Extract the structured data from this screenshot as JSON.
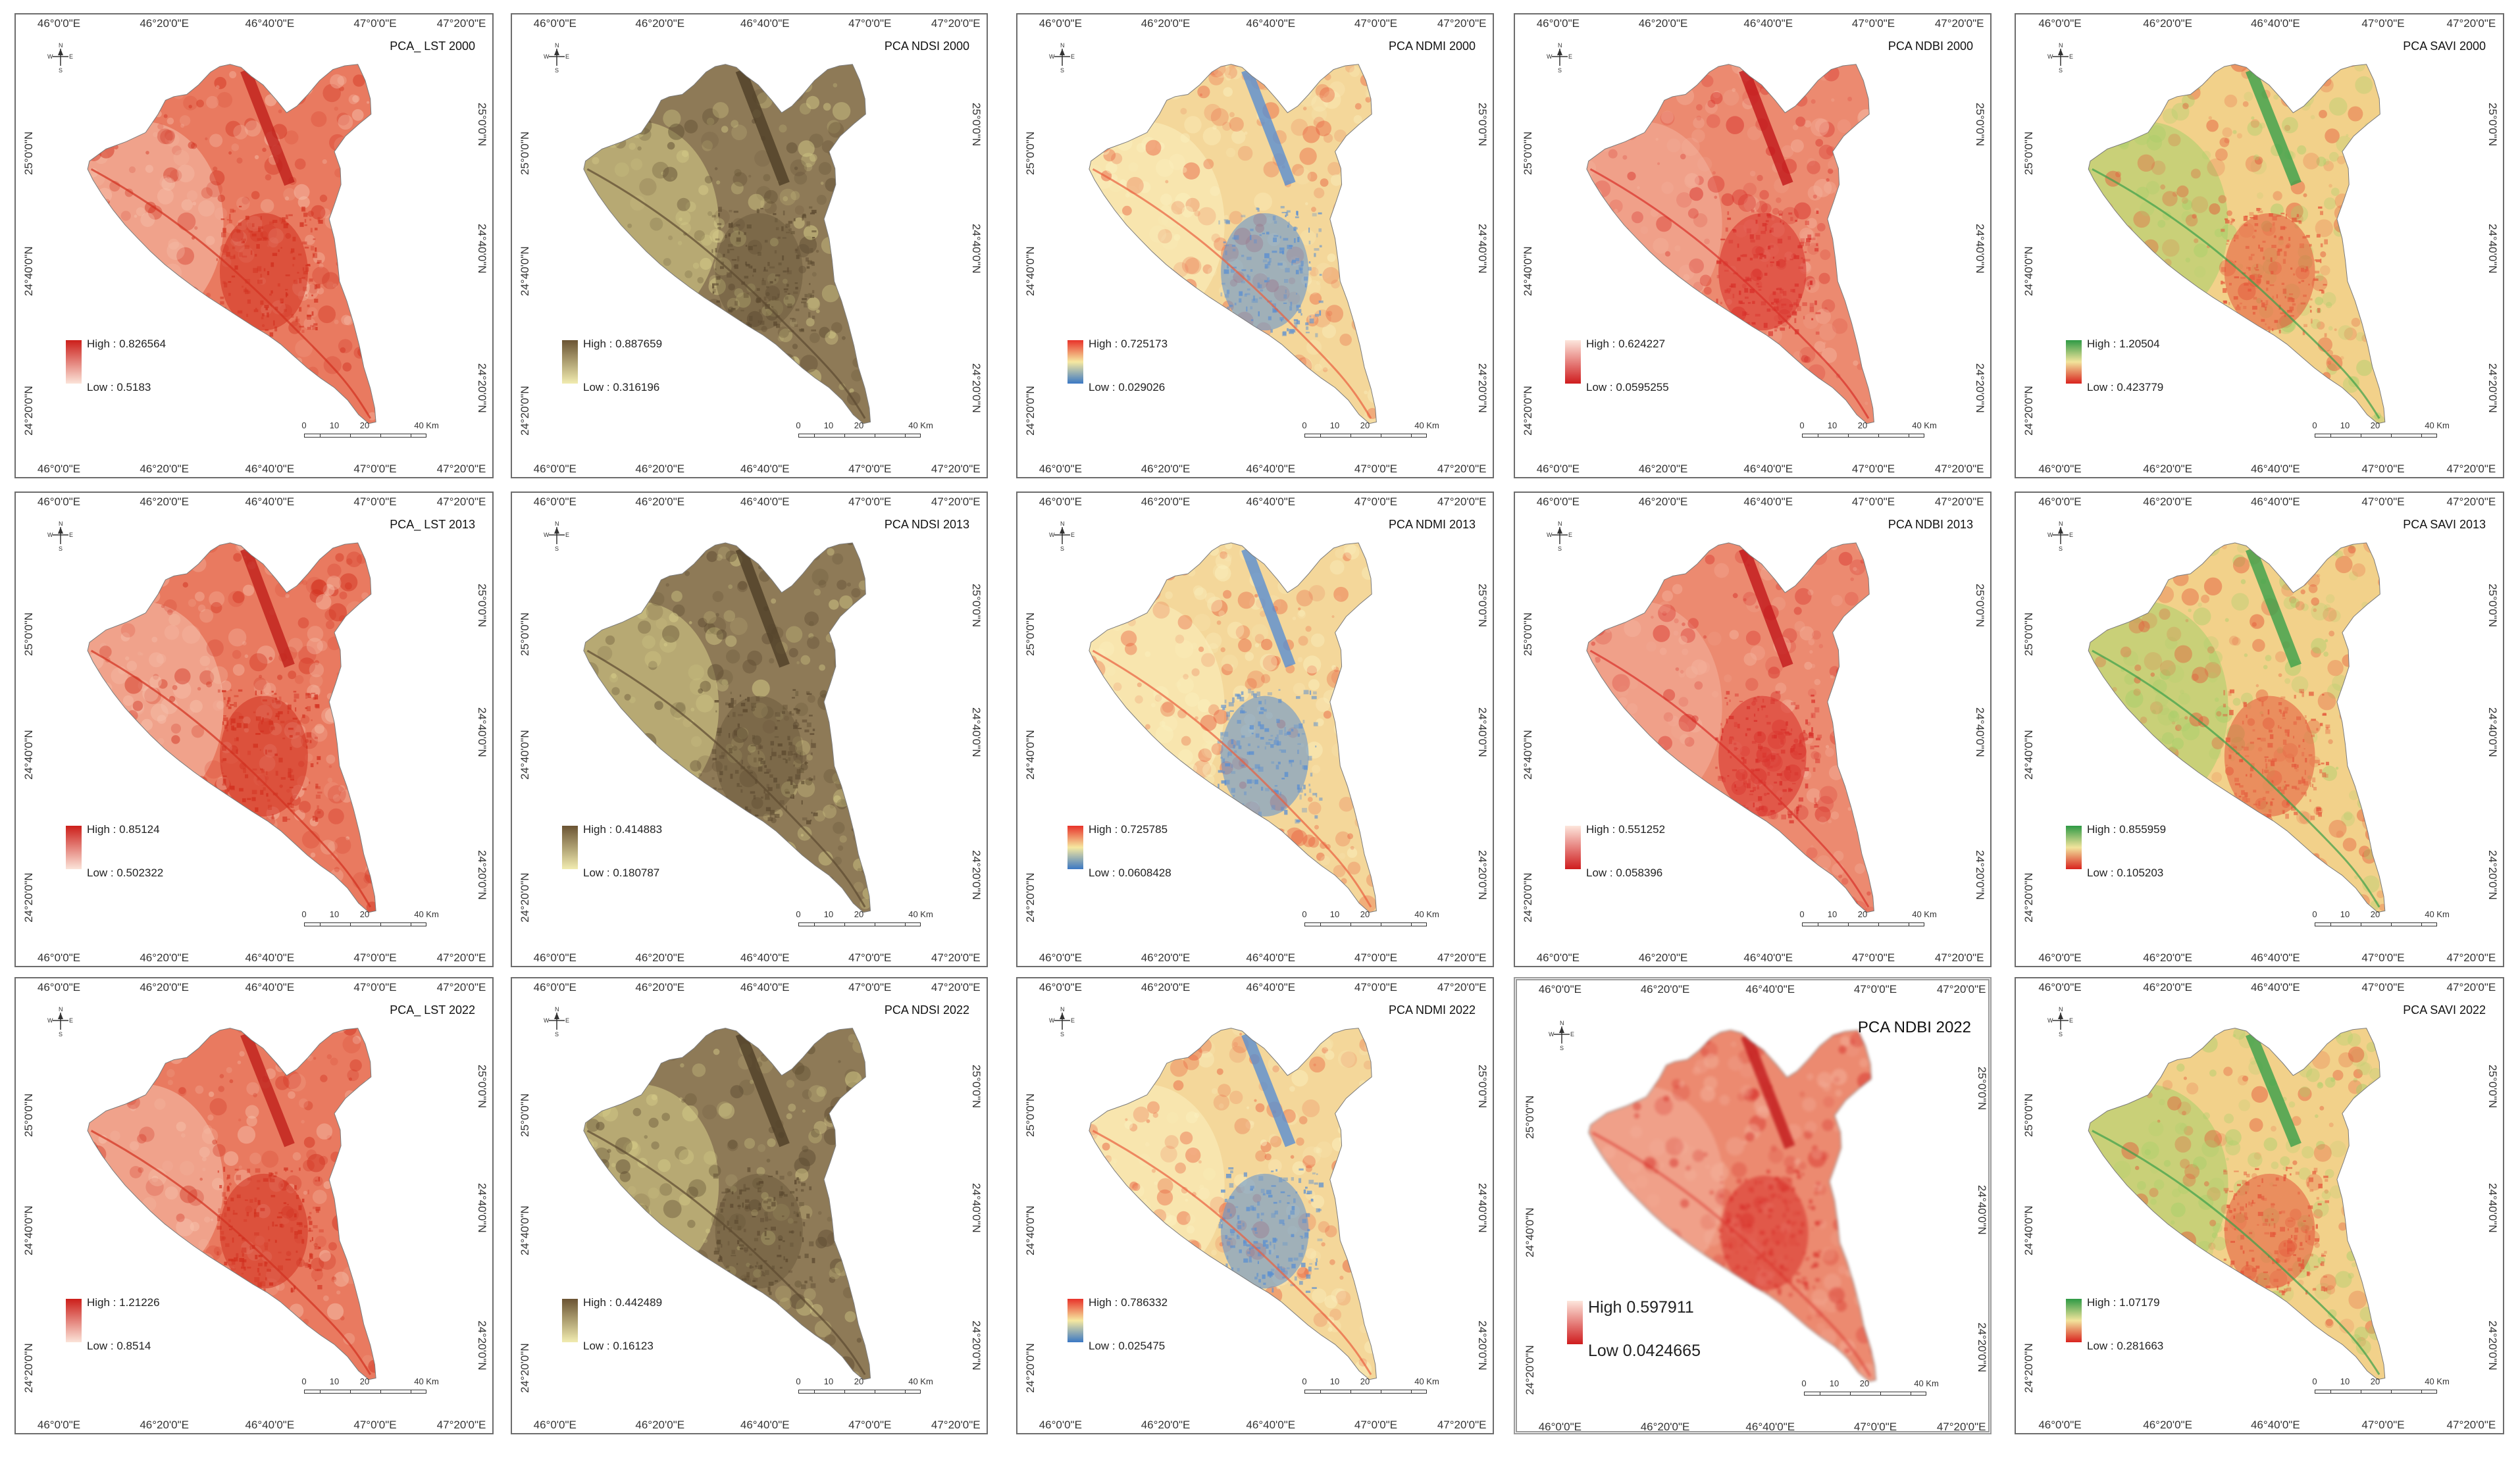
{
  "figure": {
    "scale": {
      "ticks": [
        "0",
        "10",
        "20",
        "40 Km"
      ]
    },
    "compass": {
      "n": "N",
      "s": "S",
      "e": "E",
      "w": "W"
    },
    "panels": [
      {
        "id": "lst-2000",
        "title": "PCA_ LST 2000",
        "theme": "lst",
        "high": "High : 0.826564",
        "low": "Low : 0.5183",
        "lon_top": [
          "46°0'0\"E",
          "46°20'0\"E",
          "46°40'0\"E",
          "47°0'0\"E",
          "47°20'0\"E"
        ],
        "lon_bottom": [
          "46°0'0\"E",
          "46°20'0\"E",
          "46°40'0\"E",
          "47°0'0\"E",
          "47°20'0\"E"
        ],
        "lat": [
          "25°0'0\"N",
          "24°40'0\"N",
          "24°20'0\"N"
        ]
      },
      {
        "id": "ndsi-2000",
        "title": "PCA NDSI 2000",
        "theme": "ndsi",
        "high": "High : 0.887659",
        "low": "Low : 0.316196",
        "lon_top": [
          "46°0'0\"E",
          "46°20'0\"E",
          "46°40'0\"E",
          "47°0'0\"E",
          "47°20'0\"E"
        ],
        "lon_bottom": [
          "46°0'0\"E",
          "46°20'0\"E",
          "46°40'0\"E",
          "47°0'0\"E",
          "47°20'0\"E"
        ],
        "lat": [
          "25°0'0\"N",
          "24°40'0\"N",
          "24°20'0\"N"
        ]
      },
      {
        "id": "ndmi-2000",
        "title": "PCA NDMI 2000",
        "theme": "ndmi",
        "high": "High : 0.725173",
        "low": "Low : 0.029026",
        "lon_top": [
          "46°0'0\"E",
          "46°20'0\"E",
          "46°40'0\"E",
          "47°0'0\"E",
          "47°20'0\"E"
        ],
        "lon_bottom": [
          "46°0'0\"E",
          "46°20'0\"E",
          "46°40'0\"E",
          "47°0'0\"E",
          "47°20'0\"E"
        ],
        "lat": [
          "25°0'0\"N",
          "24°40'0\"N",
          "24°20'0\"N"
        ]
      },
      {
        "id": "ndbi-2000",
        "title": "PCA NDBI 2000",
        "theme": "ndbi",
        "high": "High : 0.624227",
        "low": "Low : 0.0595255",
        "lon_top": [
          "46°0'0\"E",
          "46°20'0\"E",
          "46°40'0\"E",
          "47°0'0\"E",
          "47°20'0\"E"
        ],
        "lon_bottom": [
          "46°0'0\"E",
          "46°20'0\"E",
          "46°40'0\"E",
          "47°0'0\"E",
          "47°20'0\"E"
        ],
        "lat": [
          "25°0'0\"N",
          "24°40'0\"N",
          "24°20'0\"N"
        ]
      },
      {
        "id": "savi-2000",
        "title": "PCA SAVI 2000",
        "theme": "savi",
        "high": "High : 1.20504",
        "low": "Low : 0.423779",
        "lon_top": [
          "46°0'0\"E",
          "46°20'0\"E",
          "46°40'0\"E",
          "47°0'0\"E",
          "47°20'0\"E"
        ],
        "lon_bottom": [
          "46°0'0\"E",
          "46°20'0\"E",
          "46°40'0\"E",
          "47°0'0\"E",
          "47°20'0\"E"
        ],
        "lat": [
          "25°0'0\"N",
          "24°40'0\"N",
          "24°20'0\"N"
        ]
      },
      {
        "id": "lst-2013",
        "title": "PCA_ LST 2013",
        "theme": "lst",
        "high": "High : 0.85124",
        "low": "Low : 0.502322",
        "lon_top": [
          "46°0'0\"E",
          "46°20'0\"E",
          "46°40'0\"E",
          "47°0'0\"E",
          "47°20'0\"E"
        ],
        "lon_bottom": [
          "46°0'0\"E",
          "46°20'0\"E",
          "46°40'0\"E",
          "47°0'0\"E",
          "47°20'0\"E"
        ],
        "lat": [
          "25°0'0\"N",
          "24°40'0\"N",
          "24°20'0\"N"
        ]
      },
      {
        "id": "ndsi-2013",
        "title": "PCA NDSI 2013",
        "theme": "ndsi",
        "high": "High : 0.414883",
        "low": "Low : 0.180787",
        "lon_top": [
          "46°0'0\"E",
          "46°20'0\"E",
          "46°40'0\"E",
          "47°0'0\"E",
          "47°20'0\"E"
        ],
        "lon_bottom": [
          "46°0'0\"E",
          "46°20'0\"E",
          "46°40'0\"E",
          "47°0'0\"E",
          "47°20'0\"E"
        ],
        "lat": [
          "25°0'0\"N",
          "24°40'0\"N",
          "24°20'0\"N"
        ]
      },
      {
        "id": "ndmi-2013",
        "title": "PCA NDMI 2013",
        "theme": "ndmi",
        "high": "High : 0.725785",
        "low": "Low : 0.0608428",
        "lon_top": [
          "46°0'0\"E",
          "46°20'0\"E",
          "46°40'0\"E",
          "47°0'0\"E",
          "47°20'0\"E"
        ],
        "lon_bottom": [
          "46°0'0\"E",
          "46°20'0\"E",
          "46°40'0\"E",
          "47°0'0\"E",
          "47°20'0\"E"
        ],
        "lat": [
          "25°0'0\"N",
          "24°40'0\"N",
          "24°20'0\"N"
        ]
      },
      {
        "id": "ndbi-2013",
        "title": "PCA NDBI 2013",
        "theme": "ndbi",
        "high": "High : 0.551252",
        "low": "Low : 0.058396",
        "lon_top": [
          "46°0'0\"E",
          "46°20'0\"E",
          "46°40'0\"E",
          "47°0'0\"E",
          "47°20'0\"E"
        ],
        "lon_bottom": [
          "46°0'0\"E",
          "46°20'0\"E",
          "46°40'0\"E",
          "47°0'0\"E",
          "47°20'0\"E"
        ],
        "lat": [
          "25°0'0\"N",
          "24°40'0\"N",
          "24°20'0\"N"
        ]
      },
      {
        "id": "savi-2013",
        "title": "PCA SAVI 2013",
        "theme": "savi",
        "high": "High : 0.855959",
        "low": "Low : 0.105203",
        "lon_top": [
          "46°0'0\"E",
          "46°20'0\"E",
          "46°40'0\"E",
          "47°0'0\"E",
          "47°20'0\"E"
        ],
        "lon_bottom": [
          "46°0'0\"E",
          "46°20'0\"E",
          "46°40'0\"E",
          "47°0'0\"E",
          "47°20'0\"E"
        ],
        "lat": [
          "25°0'0\"N",
          "24°40'0\"N",
          "24°20'0\"N"
        ]
      },
      {
        "id": "lst-2022",
        "title": "PCA_ LST 2022",
        "theme": "lst",
        "high": "High : 1.21226",
        "low": "Low : 0.8514",
        "lon_top": [
          "46°0'0\"E",
          "46°20'0\"E",
          "46°40'0\"E",
          "47°0'0\"E",
          "47°20'0\"E"
        ],
        "lon_bottom": [
          "46°0'0\"E",
          "46°20'0\"E",
          "46°40'0\"E",
          "47°0'0\"E",
          "47°20'0\"E"
        ],
        "lat": [
          "25°0'0\"N",
          "24°40'0\"N",
          "24°20'0\"N"
        ]
      },
      {
        "id": "ndsi-2022",
        "title": "PCA NDSI 2022",
        "theme": "ndsi",
        "high": "High : 0.442489",
        "low": "Low : 0.16123",
        "lon_top": [
          "46°0'0\"E",
          "46°20'0\"E",
          "46°40'0\"E",
          "47°0'0\"E",
          "47°20'0\"E"
        ],
        "lon_bottom": [
          "46°0'0\"E",
          "46°20'0\"E",
          "46°40'0\"E",
          "47°0'0\"E",
          "47°20'0\"E"
        ],
        "lat": [
          "25°0'0\"N",
          "24°40'0\"N",
          "24°20'0\"N"
        ]
      },
      {
        "id": "ndmi-2022",
        "title": "PCA NDMI 2022",
        "theme": "ndmi",
        "high": "High : 0.786332",
        "low": "Low : 0.025475",
        "lon_top": [
          "46°0'0\"E",
          "46°20'0\"E",
          "46°40'0\"E",
          "47°0'0\"E",
          "47°20'0\"E"
        ],
        "lon_bottom": [
          "46°0'0\"E",
          "46°20'0\"E",
          "46°40'0\"E",
          "47°0'0\"E",
          "47°20'0\"E"
        ],
        "lat": [
          "25°0'0\"N",
          "24°40'0\"N",
          "24°20'0\"N"
        ]
      },
      {
        "id": "ndbi-2022",
        "title": "PCA NDBI 2022",
        "theme": "ndbi",
        "high": "High   0.597911",
        "low": "Low      0.0424665",
        "blurred": true,
        "lon_top": [
          "46°0'0\"E",
          "46°20'0\"E",
          "46°40'0\"E",
          "47°0'0\"E",
          "47°20'0\"E"
        ],
        "lon_bottom": [
          "46°0'0\"E",
          "46°20'0\"E",
          "46°40'0\"E",
          "47°0'0\"E",
          "47°20'0\"E"
        ],
        "lat": [
          "25°0'0\"N",
          "24°40'0\"N",
          "24°20'0\"N"
        ]
      },
      {
        "id": "savi-2022",
        "title": "PCA SAVI 2022",
        "theme": "savi",
        "high": "High : 1.07179",
        "low": "Low : 0.281663",
        "lon_top": [
          "46°0'0\"E",
          "46°20'0\"E",
          "46°40'0\"E",
          "47°0'0\"E",
          "47°20'0\"E"
        ],
        "lon_bottom": [
          "46°0'0\"E",
          "46°20'0\"E",
          "46°40'0\"E",
          "47°0'0\"E",
          "47°20'0\"E"
        ],
        "lat": [
          "25°0'0\"N",
          "24°40'0\"N",
          "24°20'0\"N"
        ]
      }
    ],
    "themes": {
      "lst": {
        "base": "#e97a60",
        "dark": "#d2301f",
        "light": "#f6c3ae",
        "ramp": [
          "#cc1f1a",
          "#fbe4d9"
        ],
        "accent": "#c0201b"
      },
      "ndsi": {
        "base": "#8e7a57",
        "dark": "#5c4a30",
        "light": "#d8cf8a",
        "ramp": [
          "#6b5433",
          "#f1ecb0"
        ],
        "accent": "#4f3f27"
      },
      "ndmi": {
        "base": "#f4d79a",
        "dark": "#e9603f",
        "light": "#fbf1c0",
        "ramp": [
          "#e8322a",
          "#f6e8a0",
          "#3b78c4"
        ],
        "accent": "#5b8fd1"
      },
      "ndbi": {
        "base": "#ec8a70",
        "dark": "#d8302a",
        "light": "#f4b39e",
        "ramp": [
          "#fde6dc",
          "#cf1c1e"
        ],
        "accent": "#c2171b"
      },
      "savi": {
        "base": "#f2d18a",
        "dark": "#e4573a",
        "light": "#a8cf6a",
        "ramp": [
          "#2e9a45",
          "#f2e49c",
          "#d9231e"
        ],
        "accent": "#3aa04a"
      }
    }
  }
}
